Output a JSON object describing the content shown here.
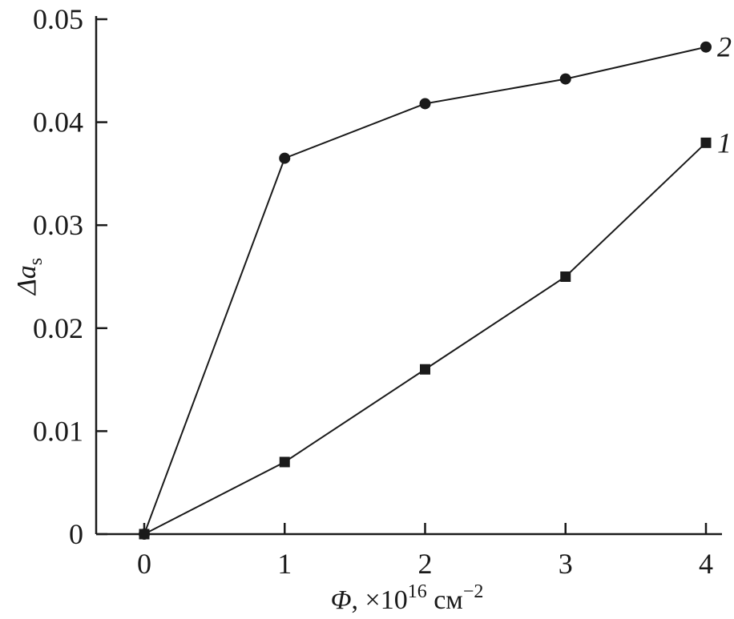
{
  "chart_data": {
    "type": "line",
    "xlabel": "Φ, ×10¹⁶ см⁻²",
    "xlabel_parts": {
      "symbol": "Φ",
      "prefix": ", ×10",
      "exp": "16",
      "unit": " см",
      "unit_exp": "−2"
    },
    "ylabel": "Δa_s",
    "ylabel_parts": {
      "main": "Δa",
      "sub": "s"
    },
    "xlim": [
      -0.3,
      4.1
    ],
    "ylim": [
      0,
      0.05
    ],
    "x_ticks": [
      0,
      1,
      2,
      3,
      4
    ],
    "x_tick_labels": [
      "0",
      "1",
      "2",
      "3",
      "4"
    ],
    "y_ticks": [
      0,
      0.01,
      0.02,
      0.03,
      0.04,
      0.05
    ],
    "y_tick_labels": [
      "0",
      "0.01",
      "0.02",
      "0.03",
      "0.04",
      "0.05"
    ],
    "grid": false,
    "series": [
      {
        "name": "1",
        "marker": "square",
        "color": "#1a1a1a",
        "x": [
          0,
          1,
          2,
          3,
          4
        ],
        "y": [
          0,
          0.007,
          0.016,
          0.025,
          0.038
        ]
      },
      {
        "name": "2",
        "marker": "circle",
        "color": "#1a1a1a",
        "x": [
          0,
          1,
          2,
          3,
          4
        ],
        "y": [
          0,
          0.0365,
          0.0418,
          0.0442,
          0.0473
        ]
      }
    ]
  }
}
